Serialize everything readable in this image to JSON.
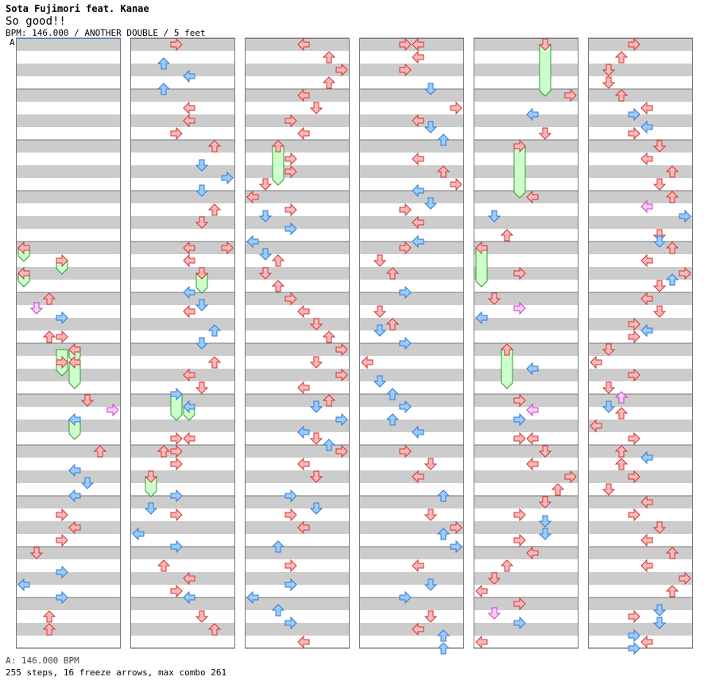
{
  "header": {
    "artist": "Sota Fujimori feat. Kanae",
    "title": "So good!!",
    "info": "BPM: 146.000 / ANOTHER DOUBLE / 5 feet",
    "bpm_marker": "A"
  },
  "footer": {
    "bpm": "A: 146.000 BPM",
    "stats": "255 steps, 16 freeze arrows, max combo 261"
  },
  "colors": {
    "stripe": "#cccccc",
    "border": "#777777",
    "red_fill": "#ffb8b8",
    "red_stroke": "#cc3333",
    "blue_fill": "#99ccff",
    "blue_stroke": "#3377cc",
    "pink_fill": "#ffccff",
    "pink_stroke": "#bb44bb",
    "freeze_fill": "#ccffcc",
    "freeze_stroke": "#339933"
  }
}
